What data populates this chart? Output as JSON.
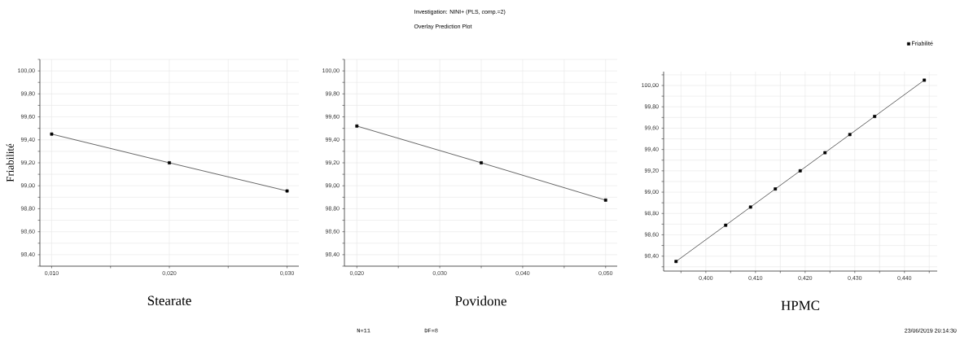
{
  "chart_data": [
    {
      "type": "line",
      "ylabel": "Friabilité",
      "xlabel": "Stearate",
      "marker": "square",
      "grid": true,
      "xlim": [
        0.009,
        0.031
      ],
      "ylim": [
        98.3,
        100.1
      ],
      "xticks": [
        {
          "value": 0.01,
          "label": "0,010"
        },
        {
          "value": 0.015,
          "label": null
        },
        {
          "value": 0.02,
          "label": "0,020"
        },
        {
          "value": 0.025,
          "label": null
        },
        {
          "value": 0.03,
          "label": "0,030"
        }
      ],
      "yticks": [
        {
          "value": 98.3,
          "label": null
        },
        {
          "value": 98.4,
          "label": "98,40"
        },
        {
          "value": 98.5,
          "label": null
        },
        {
          "value": 98.6,
          "label": "98,60"
        },
        {
          "value": 98.7,
          "label": null
        },
        {
          "value": 98.8,
          "label": "98,80"
        },
        {
          "value": 98.9,
          "label": null
        },
        {
          "value": 99.0,
          "label": "99,00"
        },
        {
          "value": 99.1,
          "label": null
        },
        {
          "value": 99.2,
          "label": "99,20"
        },
        {
          "value": 99.3,
          "label": null
        },
        {
          "value": 99.4,
          "label": "99,40"
        },
        {
          "value": 99.5,
          "label": null
        },
        {
          "value": 99.6,
          "label": "99,60"
        },
        {
          "value": 99.7,
          "label": null
        },
        {
          "value": 99.8,
          "label": "99,80"
        },
        {
          "value": 99.9,
          "label": null
        },
        {
          "value": 100.0,
          "label": "100,00"
        },
        {
          "value": 100.1,
          "label": null
        }
      ],
      "series": [
        {
          "color": "#000000",
          "x": [
            0.01,
            0.02,
            0.03
          ],
          "values": [
            99.45,
            99.2,
            98.955
          ]
        }
      ]
    },
    {
      "type": "line",
      "title": "Investigation: NINI+ (PLS, comp.=2)",
      "subtitle": "Overlay Prediction Plot",
      "xlabel": "Povidone",
      "marker": "square",
      "grid": true,
      "annotations": [
        "N=11",
        "DF=8"
      ],
      "xlim": [
        0.0185,
        0.0514
      ],
      "ylim": [
        98.3,
        100.1
      ],
      "xticks": [
        {
          "value": 0.02,
          "label": "0,020"
        },
        {
          "value": 0.025,
          "label": null
        },
        {
          "value": 0.03,
          "label": "0,030"
        },
        {
          "value": 0.035,
          "label": null
        },
        {
          "value": 0.04,
          "label": "0,040"
        },
        {
          "value": 0.045,
          "label": null
        },
        {
          "value": 0.05,
          "label": "0,050"
        }
      ],
      "yticks": [
        {
          "value": 98.3,
          "label": null
        },
        {
          "value": 98.4,
          "label": "98,40"
        },
        {
          "value": 98.5,
          "label": null
        },
        {
          "value": 98.6,
          "label": "98,60"
        },
        {
          "value": 98.7,
          "label": null
        },
        {
          "value": 98.8,
          "label": "98,80"
        },
        {
          "value": 98.9,
          "label": null
        },
        {
          "value": 99.0,
          "label": "99,00"
        },
        {
          "value": 99.1,
          "label": null
        },
        {
          "value": 99.2,
          "label": "99,20"
        },
        {
          "value": 99.3,
          "label": null
        },
        {
          "value": 99.4,
          "label": "99,40"
        },
        {
          "value": 99.5,
          "label": null
        },
        {
          "value": 99.6,
          "label": "99,60"
        },
        {
          "value": 99.7,
          "label": null
        },
        {
          "value": 99.8,
          "label": "99,80"
        },
        {
          "value": 99.9,
          "label": null
        },
        {
          "value": 100.0,
          "label": "100,00"
        },
        {
          "value": 100.1,
          "label": null
        }
      ],
      "series": [
        {
          "color": "#000000",
          "x": [
            0.02,
            0.035,
            0.05
          ],
          "values": [
            99.52,
            99.2,
            98.875
          ]
        }
      ]
    },
    {
      "type": "line",
      "xlabel": "HPMC",
      "marker": "square",
      "grid": true,
      "legend": "top right",
      "annotations": [
        "23/06/2019 20:14:30"
      ],
      "xlim": [
        0.3915,
        0.4466
      ],
      "ylim": [
        98.26,
        100.13
      ],
      "xticks": [
        {
          "value": 0.395,
          "label": null
        },
        {
          "value": 0.4,
          "label": "0,400"
        },
        {
          "value": 0.405,
          "label": null
        },
        {
          "value": 0.41,
          "label": "0,410"
        },
        {
          "value": 0.415,
          "label": null
        },
        {
          "value": 0.42,
          "label": "0,420"
        },
        {
          "value": 0.425,
          "label": null
        },
        {
          "value": 0.43,
          "label": "0,430"
        },
        {
          "value": 0.435,
          "label": null
        },
        {
          "value": 0.44,
          "label": "0,440"
        },
        {
          "value": 0.445,
          "label": null
        }
      ],
      "yticks": [
        {
          "value": 98.3,
          "label": null
        },
        {
          "value": 98.4,
          "label": "98,40"
        },
        {
          "value": 98.5,
          "label": null
        },
        {
          "value": 98.6,
          "label": "98,60"
        },
        {
          "value": 98.7,
          "label": null
        },
        {
          "value": 98.8,
          "label": "98,80"
        },
        {
          "value": 98.9,
          "label": null
        },
        {
          "value": 99.0,
          "label": "99,00"
        },
        {
          "value": 99.1,
          "label": null
        },
        {
          "value": 99.2,
          "label": "99,20"
        },
        {
          "value": 99.3,
          "label": null
        },
        {
          "value": 99.4,
          "label": "99,40"
        },
        {
          "value": 99.5,
          "label": null
        },
        {
          "value": 99.6,
          "label": "99,60"
        },
        {
          "value": 99.7,
          "label": null
        },
        {
          "value": 99.8,
          "label": "99,80"
        },
        {
          "value": 99.9,
          "label": null
        },
        {
          "value": 100.0,
          "label": "100,00"
        },
        {
          "value": 100.1,
          "label": null
        }
      ],
      "series": [
        {
          "name": "Friabilité",
          "color": "#000000",
          "x": [
            0.394,
            0.404,
            0.409,
            0.414,
            0.419,
            0.424,
            0.429,
            0.434,
            0.444
          ],
          "values": [
            98.35,
            98.69,
            98.86,
            99.03,
            99.2,
            99.37,
            99.54,
            99.71,
            100.05
          ]
        }
      ]
    }
  ]
}
